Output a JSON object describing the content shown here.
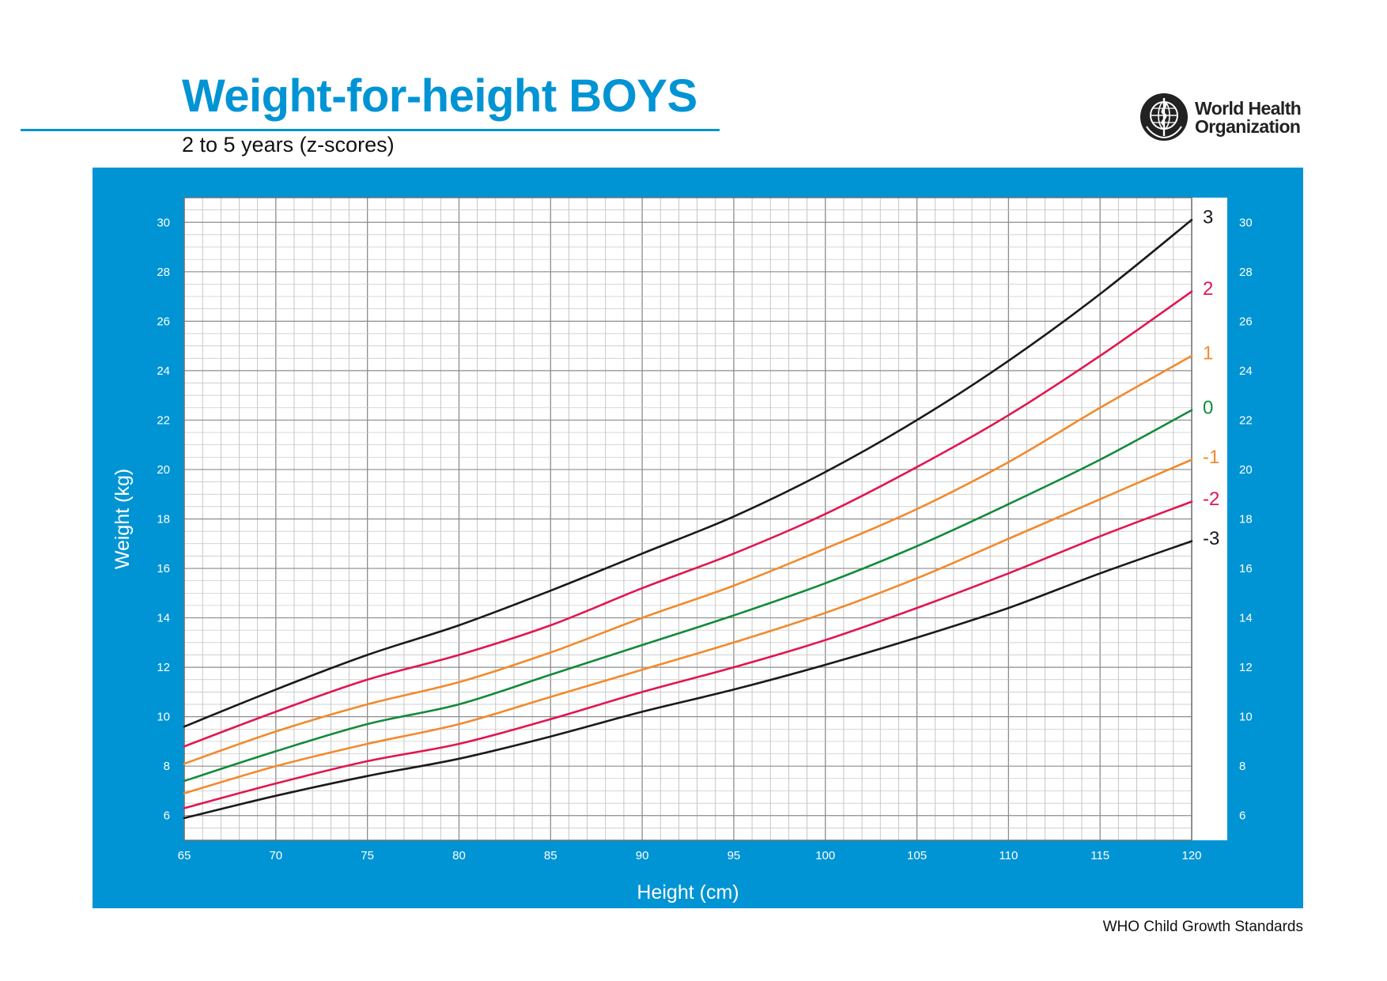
{
  "header": {
    "title": "Weight-for-height BOYS",
    "subtitle": "2 to 5 years (z-scores)"
  },
  "logo": {
    "line1": "World Health",
    "line2": "Organization",
    "icon": "who-emblem-icon"
  },
  "footer": {
    "note": "WHO Child Growth Standards"
  },
  "colors": {
    "brand_blue": "#0094d4",
    "grid": "#b4b4b4",
    "z3": "#1a1a1a",
    "z2": "#e0174f",
    "z1": "#f28a2e",
    "z0": "#138a3c"
  },
  "chart_data": {
    "type": "line",
    "title": "Weight-for-height BOYS",
    "subtitle": "2 to 5 years (z-scores)",
    "xlabel": "Height (cm)",
    "ylabel": "Weight (kg)",
    "xlim": [
      65,
      120
    ],
    "ylim": [
      5,
      31
    ],
    "x_ticks": [
      65,
      70,
      75,
      80,
      85,
      90,
      95,
      100,
      105,
      110,
      115,
      120
    ],
    "y_ticks": [
      6,
      8,
      10,
      12,
      14,
      16,
      18,
      20,
      22,
      24,
      26,
      28,
      30
    ],
    "grid": true,
    "minor_grid_x_step": 1,
    "minor_grid_y_step": 0.5,
    "x": [
      65,
      70,
      75,
      80,
      85,
      90,
      95,
      100,
      105,
      110,
      115,
      120
    ],
    "series": [
      {
        "name": "3",
        "color": "#1a1a1a",
        "values": [
          9.6,
          11.1,
          12.5,
          13.7,
          15.1,
          16.6,
          18.1,
          19.9,
          22.0,
          24.4,
          27.1,
          30.1
        ]
      },
      {
        "name": "2",
        "color": "#e0174f",
        "values": [
          8.8,
          10.2,
          11.5,
          12.5,
          13.7,
          15.2,
          16.6,
          18.2,
          20.1,
          22.2,
          24.6,
          27.2
        ]
      },
      {
        "name": "1",
        "color": "#f28a2e",
        "values": [
          8.1,
          9.4,
          10.5,
          11.4,
          12.6,
          14.0,
          15.3,
          16.8,
          18.4,
          20.3,
          22.5,
          24.6
        ]
      },
      {
        "name": "0",
        "color": "#138a3c",
        "values": [
          7.4,
          8.6,
          9.7,
          10.5,
          11.7,
          12.9,
          14.1,
          15.4,
          16.9,
          18.6,
          20.4,
          22.4
        ]
      },
      {
        "name": "-1",
        "color": "#f28a2e",
        "values": [
          6.9,
          8.0,
          8.9,
          9.7,
          10.8,
          11.9,
          13.0,
          14.2,
          15.6,
          17.2,
          18.8,
          20.4
        ]
      },
      {
        "name": "-2",
        "color": "#e0174f",
        "values": [
          6.3,
          7.3,
          8.2,
          8.9,
          9.9,
          11.0,
          12.0,
          13.1,
          14.4,
          15.8,
          17.3,
          18.7
        ]
      },
      {
        "name": "-3",
        "color": "#1a1a1a",
        "values": [
          5.9,
          6.8,
          7.6,
          8.3,
          9.2,
          10.2,
          11.1,
          12.1,
          13.2,
          14.4,
          15.8,
          17.1
        ]
      }
    ]
  }
}
